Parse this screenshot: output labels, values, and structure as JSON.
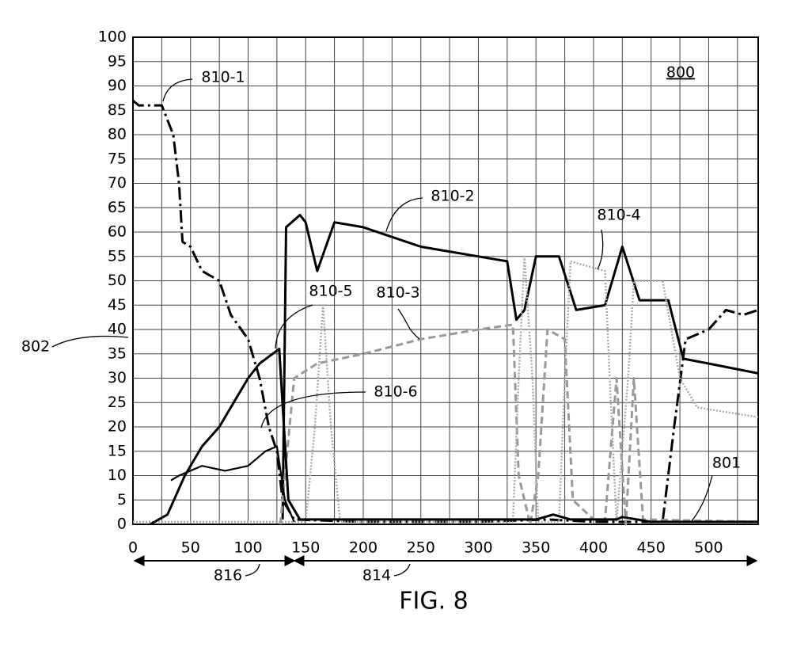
{
  "chart_data": {
    "type": "line",
    "xlim": [
      0,
      543
    ],
    "ylim": [
      0,
      100
    ],
    "xticks": [
      0,
      50,
      100,
      150,
      200,
      250,
      300,
      350,
      400,
      450,
      500
    ],
    "yticks": [
      0,
      5,
      10,
      15,
      20,
      25,
      30,
      35,
      40,
      45,
      50,
      55,
      60,
      65,
      70,
      75,
      80,
      85,
      90,
      95,
      100
    ],
    "grid": true,
    "series": [
      {
        "name": "810-1",
        "color": "#000000",
        "style": "dashdot",
        "x": [
          0,
          5,
          10,
          25,
          35,
          40,
          43,
          50,
          60,
          75,
          85,
          100,
          110,
          118,
          125,
          130,
          140,
          200,
          300,
          360,
          400,
          460,
          470,
          480,
          500,
          515,
          530,
          543
        ],
        "values": [
          87,
          86,
          86,
          86,
          80,
          70,
          58,
          57,
          52,
          50,
          43,
          38,
          30,
          20,
          15,
          5,
          1,
          0.5,
          0.5,
          1,
          0.5,
          0.5,
          20,
          38,
          40,
          44,
          43,
          44
        ]
      },
      {
        "name": "810-2",
        "color": "#000000",
        "style": "solid",
        "x": [
          130,
          133,
          145,
          150,
          160,
          175,
          200,
          225,
          250,
          300,
          325,
          333,
          340,
          350,
          370,
          385,
          410,
          425,
          440,
          465,
          478,
          500,
          543
        ],
        "values": [
          1,
          61,
          63.5,
          62,
          52,
          62,
          61,
          59,
          57,
          55,
          54,
          42,
          44,
          55,
          55,
          44,
          45,
          57,
          46,
          46,
          34,
          33,
          31
        ]
      },
      {
        "name": "810-3",
        "color": "#999999",
        "style": "dashed",
        "x": [
          128,
          140,
          160,
          200,
          250,
          300,
          330,
          335,
          345,
          352,
          360,
          375,
          382,
          400,
          410,
          420,
          428,
          435,
          443,
          543
        ],
        "values": [
          0,
          30,
          33,
          35,
          38,
          40,
          41,
          10,
          0,
          10,
          40,
          38,
          5,
          1,
          1,
          30,
          0,
          30,
          1,
          0.5
        ]
      },
      {
        "name": "810-4",
        "color": "#aaaaaa",
        "style": "dotted",
        "x": [
          0,
          150,
          158,
          165,
          172,
          180,
          330,
          335,
          340,
          347,
          352,
          370,
          375,
          380,
          410,
          415,
          420,
          430,
          435,
          460,
          475,
          490,
          543
        ],
        "values": [
          0.5,
          0.5,
          20,
          45,
          20,
          0.5,
          0.5,
          30,
          55,
          30,
          0.5,
          0.5,
          30,
          54,
          52,
          25,
          0.5,
          30,
          50,
          50,
          30,
          24,
          22
        ]
      },
      {
        "name": "810-5",
        "color": "#000000",
        "style": "solid",
        "x": [
          15,
          30,
          45,
          60,
          75,
          100,
          110,
          127,
          135,
          145,
          350,
          365,
          380,
          420,
          425,
          450,
          543
        ],
        "values": [
          0,
          2,
          10,
          16,
          20,
          30,
          33,
          36,
          5,
          1,
          1,
          2,
          1,
          1,
          1.5,
          0.5,
          0.5
        ]
      },
      {
        "name": "810-6",
        "color": "#000000",
        "style": "thin",
        "x": [
          33,
          40,
          60,
          80,
          100,
          115,
          125,
          132,
          140
        ],
        "values": [
          9,
          10,
          12,
          11,
          12,
          15,
          16,
          5,
          0.5
        ]
      }
    ],
    "annotations": [
      "800",
      "801",
      "802",
      "816",
      "814"
    ],
    "caption": "FIG. 8"
  }
}
